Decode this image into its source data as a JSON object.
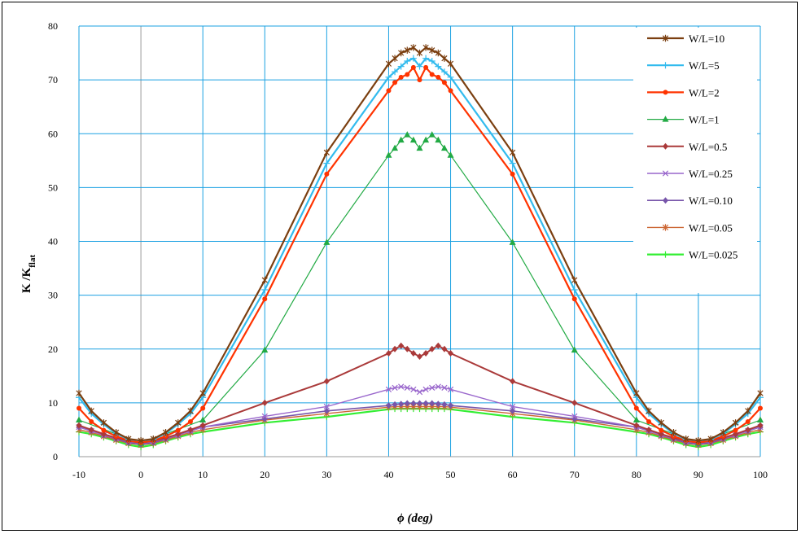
{
  "chart_data": {
    "type": "line",
    "xlabel": "ϕ (deg)",
    "ylabel": "K /K",
    "ylabel_sub": "flat",
    "xlim": [
      -10,
      100
    ],
    "ylim": [
      0,
      80
    ],
    "xticks": [
      "-10",
      "0",
      "10",
      "20",
      "30",
      "40",
      "50",
      "60",
      "70",
      "80",
      "90",
      "100"
    ],
    "yticks": [
      "0",
      "10",
      "20",
      "30",
      "40",
      "50",
      "60",
      "70",
      "80"
    ],
    "grid": true,
    "legend_position": "right",
    "series": [
      {
        "name": "W/L=10",
        "color": "#7b3f10",
        "marker": "star",
        "x": [
          -10,
          -8,
          -6,
          -4,
          -2,
          0,
          2,
          4,
          6,
          8,
          10,
          20,
          30,
          40,
          41,
          42,
          43,
          44,
          45,
          46,
          47,
          48,
          49,
          50,
          60,
          70,
          80,
          82,
          84,
          86,
          88,
          90,
          92,
          94,
          96,
          98,
          100
        ],
        "y": [
          11.8,
          8.5,
          6.3,
          4.5,
          3.3,
          3.0,
          3.3,
          4.5,
          6.3,
          8.5,
          11.8,
          32.8,
          56.5,
          73.0,
          74.0,
          75.0,
          75.5,
          76.0,
          75.0,
          76.0,
          75.5,
          75.0,
          74.0,
          73.0,
          56.5,
          32.8,
          11.8,
          8.5,
          6.3,
          4.5,
          3.3,
          3.0,
          3.3,
          4.5,
          6.3,
          8.5,
          11.8
        ]
      },
      {
        "name": "W/L=5",
        "color": "#33bbee",
        "marker": "plus",
        "x": [
          -10,
          -8,
          -6,
          -4,
          -2,
          0,
          2,
          4,
          6,
          8,
          10,
          20,
          30,
          40,
          41,
          42,
          43,
          44,
          45,
          46,
          47,
          48,
          49,
          50,
          60,
          70,
          80,
          82,
          84,
          86,
          88,
          90,
          92,
          94,
          96,
          98,
          100
        ],
        "y": [
          11.0,
          8.0,
          6.0,
          4.3,
          3.2,
          3.0,
          3.2,
          4.3,
          6.0,
          8.0,
          11.0,
          31.0,
          54.5,
          70.5,
          71.5,
          72.5,
          73.5,
          74.0,
          72.5,
          74.0,
          73.5,
          72.5,
          71.5,
          70.5,
          54.5,
          31.0,
          11.0,
          8.0,
          6.0,
          4.3,
          3.2,
          3.0,
          3.2,
          4.3,
          6.0,
          8.0,
          11.0
        ]
      },
      {
        "name": "W/L=2",
        "color": "#ff3300",
        "marker": "circle",
        "x": [
          -10,
          -8,
          -6,
          -4,
          -2,
          0,
          2,
          4,
          6,
          8,
          10,
          20,
          30,
          40,
          41,
          42,
          43,
          44,
          45,
          46,
          47,
          48,
          49,
          50,
          60,
          70,
          80,
          82,
          84,
          86,
          88,
          90,
          92,
          94,
          96,
          98,
          100
        ],
        "y": [
          9.0,
          6.5,
          4.9,
          3.8,
          3.0,
          2.6,
          3.0,
          3.8,
          4.9,
          6.5,
          9.0,
          29.3,
          52.5,
          68.0,
          69.5,
          70.5,
          71.0,
          72.3,
          70.0,
          72.3,
          71.0,
          70.5,
          69.5,
          68.0,
          52.5,
          29.3,
          9.0,
          6.5,
          4.9,
          3.8,
          3.0,
          2.6,
          3.0,
          3.8,
          4.9,
          6.5,
          9.0
        ]
      },
      {
        "name": "W/L=1",
        "color": "#22aa44",
        "marker": "triangle",
        "x": [
          -10,
          0,
          10,
          20,
          30,
          40,
          41,
          42,
          43,
          44,
          45,
          46,
          47,
          48,
          49,
          50,
          60,
          70,
          80,
          90,
          100
        ],
        "y": [
          6.8,
          2.5,
          6.8,
          19.8,
          39.8,
          56.0,
          57.3,
          58.8,
          59.8,
          58.8,
          57.3,
          58.8,
          59.8,
          58.8,
          57.3,
          56.0,
          39.8,
          19.8,
          6.8,
          2.5,
          6.8
        ]
      },
      {
        "name": "W/L=0.5",
        "color": "#aa3a3a",
        "marker": "diamond",
        "x": [
          -10,
          -8,
          -6,
          -4,
          -2,
          0,
          2,
          4,
          6,
          8,
          10,
          20,
          30,
          40,
          41,
          42,
          43,
          44,
          45,
          46,
          47,
          48,
          49,
          50,
          60,
          70,
          80,
          82,
          84,
          86,
          88,
          90,
          92,
          94,
          96,
          98,
          100
        ],
        "y": [
          5.8,
          5.0,
          4.2,
          3.5,
          2.9,
          2.6,
          2.9,
          3.5,
          4.2,
          5.0,
          5.8,
          10.0,
          14.0,
          19.2,
          20.0,
          20.6,
          20.0,
          19.2,
          18.6,
          19.2,
          20.0,
          20.6,
          20.0,
          19.2,
          14.0,
          10.0,
          5.8,
          5.0,
          4.2,
          3.5,
          2.9,
          2.6,
          2.9,
          3.5,
          4.2,
          5.0,
          5.8
        ]
      },
      {
        "name": "W/L=0.25",
        "color": "#9966cc",
        "marker": "x",
        "x": [
          -10,
          -8,
          -6,
          -4,
          -2,
          0,
          2,
          4,
          6,
          8,
          10,
          20,
          30,
          40,
          41,
          42,
          43,
          44,
          45,
          46,
          47,
          48,
          49,
          50,
          60,
          70,
          80,
          82,
          84,
          86,
          88,
          90,
          92,
          94,
          96,
          98,
          100
        ],
        "y": [
          5.5,
          4.8,
          4.0,
          3.4,
          2.8,
          2.5,
          2.8,
          3.4,
          4.0,
          4.8,
          5.5,
          7.5,
          9.3,
          12.5,
          12.8,
          13.0,
          12.8,
          12.5,
          12.0,
          12.5,
          12.8,
          13.0,
          12.8,
          12.5,
          9.3,
          7.5,
          5.5,
          4.8,
          4.0,
          3.4,
          2.8,
          2.5,
          2.8,
          3.4,
          4.0,
          4.8,
          5.5
        ]
      },
      {
        "name": "W/L=0.10",
        "color": "#7755aa",
        "marker": "diamond",
        "x": [
          -10,
          -8,
          -6,
          -4,
          -2,
          0,
          2,
          4,
          6,
          8,
          10,
          20,
          30,
          40,
          41,
          42,
          43,
          44,
          45,
          46,
          47,
          48,
          49,
          50,
          60,
          70,
          80,
          82,
          84,
          86,
          88,
          90,
          92,
          94,
          96,
          98,
          100
        ],
        "y": [
          5.5,
          4.8,
          4.0,
          3.3,
          2.6,
          2.3,
          2.6,
          3.3,
          4.0,
          4.8,
          5.5,
          7.0,
          8.5,
          9.5,
          9.7,
          9.8,
          9.9,
          9.9,
          9.9,
          9.9,
          9.9,
          9.8,
          9.7,
          9.5,
          8.5,
          7.0,
          5.5,
          4.8,
          4.0,
          3.3,
          2.6,
          2.3,
          2.6,
          3.3,
          4.0,
          4.8,
          5.5
        ]
      },
      {
        "name": "W/L=0.05",
        "color": "#cc6633",
        "marker": "star",
        "x": [
          -10,
          -8,
          -6,
          -4,
          -2,
          0,
          2,
          4,
          6,
          8,
          10,
          20,
          30,
          40,
          41,
          42,
          43,
          44,
          45,
          46,
          47,
          48,
          49,
          50,
          60,
          70,
          80,
          82,
          84,
          86,
          88,
          90,
          92,
          94,
          96,
          98,
          100
        ],
        "y": [
          5.0,
          4.5,
          3.8,
          3.1,
          2.5,
          2.2,
          2.5,
          3.1,
          3.8,
          4.5,
          5.0,
          6.8,
          8.0,
          9.2,
          9.3,
          9.3,
          9.3,
          9.3,
          9.3,
          9.3,
          9.3,
          9.3,
          9.3,
          9.2,
          8.0,
          6.8,
          5.0,
          4.5,
          3.8,
          3.1,
          2.5,
          2.2,
          2.5,
          3.1,
          3.8,
          4.5,
          5.0
        ]
      },
      {
        "name": "W/L=0.025",
        "color": "#33ee33",
        "marker": "plus",
        "x": [
          -10,
          -8,
          -6,
          -4,
          -2,
          0,
          2,
          4,
          6,
          8,
          10,
          20,
          30,
          40,
          41,
          42,
          43,
          44,
          45,
          46,
          47,
          48,
          49,
          50,
          60,
          70,
          80,
          82,
          84,
          86,
          88,
          90,
          92,
          94,
          96,
          98,
          100
        ],
        "y": [
          4.6,
          4.2,
          3.6,
          2.9,
          2.2,
          1.8,
          2.2,
          2.9,
          3.6,
          4.2,
          4.6,
          6.3,
          7.4,
          8.8,
          8.9,
          8.9,
          8.9,
          8.9,
          8.9,
          8.9,
          8.9,
          8.9,
          8.9,
          8.8,
          7.4,
          6.3,
          4.6,
          4.2,
          3.6,
          2.9,
          2.2,
          1.8,
          2.2,
          2.9,
          3.6,
          4.2,
          4.6
        ]
      }
    ]
  }
}
